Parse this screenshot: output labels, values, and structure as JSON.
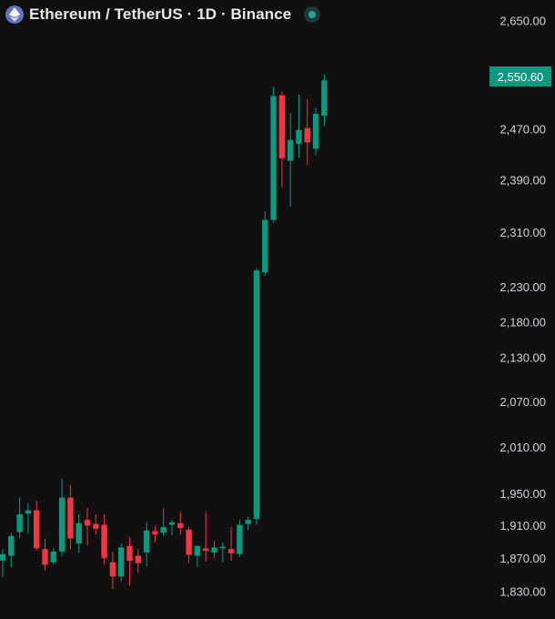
{
  "header": {
    "title": "Ethereum / TetherUS · 1D · Binance",
    "logo_icon": "ethereum-icon",
    "status_icon": "market-open-dot-icon",
    "status_color": "#26a69a"
  },
  "colors": {
    "up": "#089981",
    "down": "#f23645",
    "background": "#101010",
    "axis_text": "#d1d4dc"
  },
  "current_price_label": "2,550.60",
  "chart_data": {
    "type": "candlestick",
    "symbol": "Ethereum / TetherUS",
    "interval": "1D",
    "exchange": "Binance",
    "y_scale": "log",
    "ylim": [
      1820,
      2665
    ],
    "y_tick_labels": [
      "2,650.00",
      "2,470.00",
      "2,390.00",
      "2,310.00",
      "2,230.00",
      "2,180.00",
      "2,130.00",
      "2,070.00",
      "2,010.00",
      "1,950.00",
      "1,910.00",
      "1,870.00",
      "1,830.00"
    ],
    "y_tick_values": [
      2650,
      2470,
      2390,
      2310,
      2230,
      2180,
      2130,
      2070,
      2010,
      1950,
      1910,
      1870,
      1830
    ],
    "last_price": 2550.6,
    "candles": [
      {
        "o": 1868,
        "h": 1882,
        "l": 1848,
        "c": 1876
      },
      {
        "o": 1874,
        "h": 1902,
        "l": 1860,
        "c": 1898
      },
      {
        "o": 1903,
        "h": 1946,
        "l": 1896,
        "c": 1925
      },
      {
        "o": 1926,
        "h": 1939,
        "l": 1901,
        "c": 1930
      },
      {
        "o": 1930,
        "h": 1942,
        "l": 1880,
        "c": 1883
      },
      {
        "o": 1882,
        "h": 1895,
        "l": 1856,
        "c": 1863
      },
      {
        "o": 1866,
        "h": 1883,
        "l": 1863,
        "c": 1879
      },
      {
        "o": 1879,
        "h": 1970,
        "l": 1873,
        "c": 1946
      },
      {
        "o": 1946,
        "h": 1962,
        "l": 1882,
        "c": 1895
      },
      {
        "o": 1889,
        "h": 1925,
        "l": 1878,
        "c": 1914
      },
      {
        "o": 1918,
        "h": 1933,
        "l": 1887,
        "c": 1911
      },
      {
        "o": 1913,
        "h": 1925,
        "l": 1900,
        "c": 1907
      },
      {
        "o": 1912,
        "h": 1925,
        "l": 1863,
        "c": 1871
      },
      {
        "o": 1866,
        "h": 1879,
        "l": 1834,
        "c": 1849
      },
      {
        "o": 1849,
        "h": 1889,
        "l": 1843,
        "c": 1884
      },
      {
        "o": 1886,
        "h": 1897,
        "l": 1838,
        "c": 1868
      },
      {
        "o": 1874,
        "h": 1882,
        "l": 1853,
        "c": 1865
      },
      {
        "o": 1878,
        "h": 1915,
        "l": 1861,
        "c": 1905
      },
      {
        "o": 1904,
        "h": 1910,
        "l": 1890,
        "c": 1900
      },
      {
        "o": 1902,
        "h": 1933,
        "l": 1898,
        "c": 1909
      },
      {
        "o": 1912,
        "h": 1918,
        "l": 1899,
        "c": 1915
      },
      {
        "o": 1914,
        "h": 1928,
        "l": 1899,
        "c": 1908
      },
      {
        "o": 1906,
        "h": 1910,
        "l": 1865,
        "c": 1875
      },
      {
        "o": 1874,
        "h": 1885,
        "l": 1860,
        "c": 1886
      },
      {
        "o": 1883,
        "h": 1928,
        "l": 1867,
        "c": 1880
      },
      {
        "o": 1878,
        "h": 1892,
        "l": 1871,
        "c": 1884
      },
      {
        "o": 1883,
        "h": 1890,
        "l": 1866,
        "c": 1885
      },
      {
        "o": 1882,
        "h": 1909,
        "l": 1868,
        "c": 1877
      },
      {
        "o": 1876,
        "h": 1918,
        "l": 1873,
        "c": 1912
      },
      {
        "o": 1913,
        "h": 1922,
        "l": 1905,
        "c": 1918
      },
      {
        "o": 1919,
        "h": 2258,
        "l": 1912,
        "c": 2255
      },
      {
        "o": 2252,
        "h": 2343,
        "l": 2247,
        "c": 2330
      },
      {
        "o": 2330,
        "h": 2540,
        "l": 2326,
        "c": 2525
      },
      {
        "o": 2526,
        "h": 2532,
        "l": 2380,
        "c": 2425
      },
      {
        "o": 2421,
        "h": 2497,
        "l": 2350,
        "c": 2454
      },
      {
        "o": 2448,
        "h": 2527,
        "l": 2426,
        "c": 2470
      },
      {
        "o": 2473,
        "h": 2520,
        "l": 2415,
        "c": 2450
      },
      {
        "o": 2440,
        "h": 2506,
        "l": 2430,
        "c": 2496
      },
      {
        "o": 2493,
        "h": 2560,
        "l": 2476,
        "c": 2550.6
      }
    ]
  }
}
